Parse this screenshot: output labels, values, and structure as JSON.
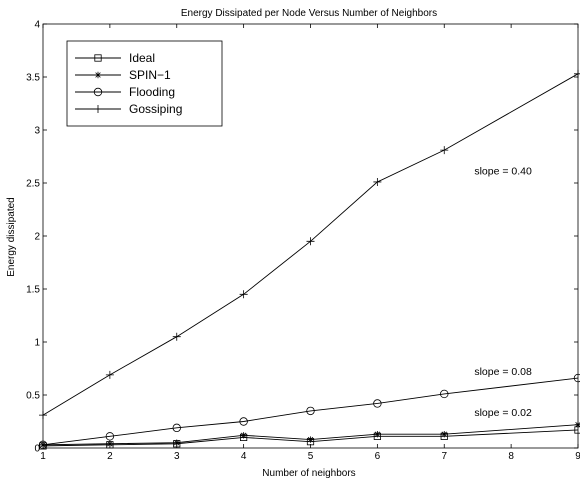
{
  "chart_data": {
    "type": "line",
    "title": "Energy Dissipated per Node Versus Number of Neighbors",
    "xlabel": "Number of neighbors",
    "ylabel": "Energy dissipated",
    "xlim": [
      1,
      9
    ],
    "ylim": [
      0,
      4
    ],
    "xticks": [
      1,
      2,
      3,
      4,
      5,
      6,
      7,
      8,
      9
    ],
    "yticks": [
      0,
      0.5,
      1,
      1.5,
      2,
      2.5,
      3,
      3.5,
      4
    ],
    "ytick_labels": [
      "0",
      "0.5",
      "1",
      "1.5",
      "2",
      "2.5",
      "3",
      "3.5",
      "4"
    ],
    "grid": false,
    "legend_position": "top-left",
    "series": [
      {
        "name": "Ideal",
        "marker": "square",
        "x": [
          1,
          2,
          3,
          4,
          5,
          6,
          7,
          9
        ],
        "y": [
          0.02,
          0.03,
          0.04,
          0.1,
          0.06,
          0.11,
          0.11,
          0.17
        ]
      },
      {
        "name": "SPIN−1",
        "marker": "asterisk",
        "x": [
          1,
          2,
          3,
          4,
          5,
          6,
          7,
          9
        ],
        "y": [
          0.03,
          0.04,
          0.05,
          0.12,
          0.08,
          0.13,
          0.13,
          0.22
        ]
      },
      {
        "name": "Flooding",
        "marker": "circle",
        "x": [
          1,
          2,
          3,
          4,
          5,
          6,
          7,
          9
        ],
        "y": [
          0.03,
          0.11,
          0.19,
          0.25,
          0.35,
          0.42,
          0.51,
          0.66
        ]
      },
      {
        "name": "Gossiping",
        "marker": "plus",
        "x": [
          1,
          2,
          3,
          4,
          5,
          6,
          7,
          9
        ],
        "y": [
          0.31,
          0.69,
          1.05,
          1.45,
          1.95,
          2.51,
          2.81,
          3.53
        ]
      }
    ],
    "annotations": [
      {
        "text": "slope = 0.40",
        "x": 7.45,
        "y": 2.58
      },
      {
        "text": "slope = 0.08",
        "x": 7.45,
        "y": 0.69
      },
      {
        "text": "slope = 0.02",
        "x": 7.45,
        "y": 0.3
      }
    ]
  }
}
